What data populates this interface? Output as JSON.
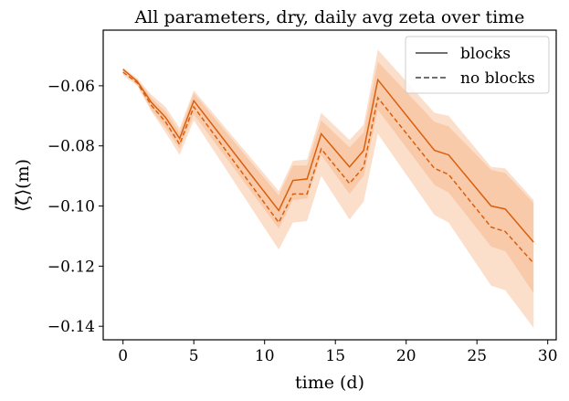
{
  "chart_data": {
    "type": "line",
    "title": "All parameters, dry, daily avg zeta over time",
    "xlabel": "time (d)",
    "ylabel": "⟨ζ̄⟩(m)",
    "xlim": [
      -1.4,
      30.6
    ],
    "ylim": [
      -0.1445,
      -0.0415
    ],
    "xticks": [
      0,
      5,
      10,
      15,
      20,
      25,
      30
    ],
    "yticks": [
      -0.06,
      -0.08,
      -0.1,
      -0.12,
      -0.14
    ],
    "xtick_labels": [
      "0",
      "5",
      "10",
      "15",
      "20",
      "25",
      "30"
    ],
    "ytick_labels": [
      "−0.06",
      "−0.08",
      "−0.10",
      "−0.12",
      "−0.14"
    ],
    "x": [
      0,
      1,
      2,
      3,
      4,
      5,
      11,
      12,
      13,
      14,
      16,
      17,
      18,
      22,
      23,
      26,
      27,
      29
    ],
    "grid": false,
    "legend_position": "top-right",
    "colors": {
      "line": "#d95f0e",
      "band": "#f4a46a"
    },
    "series": [
      {
        "name": "blocks",
        "style": "solid",
        "values": [
          -0.0545,
          -0.0585,
          -0.0655,
          -0.0705,
          -0.0775,
          -0.065,
          -0.1015,
          -0.0915,
          -0.091,
          -0.076,
          -0.087,
          -0.0815,
          -0.058,
          -0.0815,
          -0.083,
          -0.1,
          -0.101,
          -0.112
        ],
        "lower": [
          -0.0555,
          -0.0595,
          -0.068,
          -0.074,
          -0.081,
          -0.0695,
          -0.1075,
          -0.098,
          -0.0975,
          -0.083,
          -0.096,
          -0.09,
          -0.068,
          -0.093,
          -0.0955,
          -0.1135,
          -0.115,
          -0.129
        ],
        "upper": [
          -0.054,
          -0.0575,
          -0.063,
          -0.067,
          -0.074,
          -0.0615,
          -0.095,
          -0.085,
          -0.0845,
          -0.069,
          -0.078,
          -0.073,
          -0.048,
          -0.069,
          -0.07,
          -0.087,
          -0.0875,
          -0.098
        ]
      },
      {
        "name": "no blocks",
        "style": "dashed",
        "values": [
          -0.0555,
          -0.059,
          -0.0665,
          -0.072,
          -0.0795,
          -0.067,
          -0.1055,
          -0.096,
          -0.096,
          -0.081,
          -0.0925,
          -0.087,
          -0.064,
          -0.0875,
          -0.0895,
          -0.107,
          -0.1085,
          -0.119
        ],
        "lower": [
          -0.0565,
          -0.06,
          -0.0685,
          -0.0755,
          -0.083,
          -0.0715,
          -0.1145,
          -0.1055,
          -0.105,
          -0.09,
          -0.1045,
          -0.0985,
          -0.076,
          -0.103,
          -0.1055,
          -0.1265,
          -0.128,
          -0.1405
        ],
        "upper": [
          -0.0545,
          -0.058,
          -0.064,
          -0.0685,
          -0.0755,
          -0.0625,
          -0.0965,
          -0.0865,
          -0.0865,
          -0.0715,
          -0.0805,
          -0.0755,
          -0.052,
          -0.072,
          -0.0735,
          -0.088,
          -0.089,
          -0.099
        ]
      }
    ]
  }
}
